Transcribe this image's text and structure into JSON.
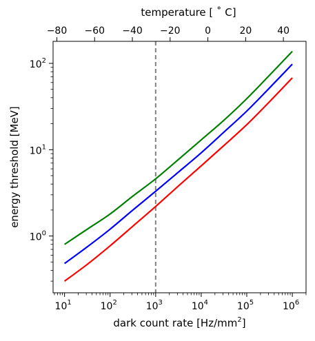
{
  "chart_data": {
    "type": "line",
    "title": "",
    "xlabel": "dark count rate [Hz/mm",
    "xlabel_sup": "2",
    "xlabel_end": "]",
    "ylabel": "energy threshold [MeV]",
    "top_xlabel": "temperature [ ˚ C]",
    "x_scale": "log",
    "y_scale": "log",
    "xlim": [
      5.6,
      2000000
    ],
    "ylim": [
      0.22,
      180
    ],
    "x_ticks": [
      10,
      100,
      1000,
      10000,
      100000,
      1000000
    ],
    "x_tick_labels": [
      {
        "base": "10",
        "exp": "1"
      },
      {
        "base": "10",
        "exp": "2"
      },
      {
        "base": "10",
        "exp": "3"
      },
      {
        "base": "10",
        "exp": "4"
      },
      {
        "base": "10",
        "exp": "5"
      },
      {
        "base": "10",
        "exp": "6"
      }
    ],
    "y_ticks": [
      1,
      10,
      100
    ],
    "y_tick_labels": [
      {
        "base": "10",
        "exp": "0"
      },
      {
        "base": "10",
        "exp": "1"
      },
      {
        "base": "10",
        "exp": "2"
      }
    ],
    "top_axis": {
      "xlim": [
        -82,
        52
      ],
      "ticks": [
        -80,
        -60,
        -40,
        -20,
        0,
        20,
        40
      ],
      "tick_labels": [
        "−80",
        "−60",
        "−40",
        "−20",
        "0",
        "20",
        "40"
      ]
    },
    "reference_line": {
      "x": 1000,
      "style": "dashed",
      "color": "#808080"
    },
    "series": [
      {
        "color": "#008000",
        "x": [
          10,
          31.6,
          100,
          316,
          1000,
          3162,
          10000,
          31623,
          100000,
          316228,
          1000000
        ],
        "y": [
          0.8,
          1.2,
          1.8,
          2.9,
          4.6,
          7.7,
          13,
          22,
          39,
          73,
          138
        ]
      },
      {
        "color": "#0000ff",
        "x": [
          10,
          31.6,
          100,
          316,
          1000,
          3162,
          10000,
          31623,
          100000,
          316228,
          1000000
        ],
        "y": [
          0.48,
          0.75,
          1.2,
          2.0,
          3.3,
          5.5,
          9.2,
          16,
          28,
          52,
          98
        ]
      },
      {
        "color": "#ff0000",
        "x": [
          10,
          31.6,
          100,
          316,
          1000,
          3162,
          10000,
          31623,
          100000,
          316228,
          1000000
        ],
        "y": [
          0.3,
          0.47,
          0.77,
          1.3,
          2.2,
          3.8,
          6.5,
          11.2,
          19.5,
          36,
          68
        ]
      }
    ]
  }
}
